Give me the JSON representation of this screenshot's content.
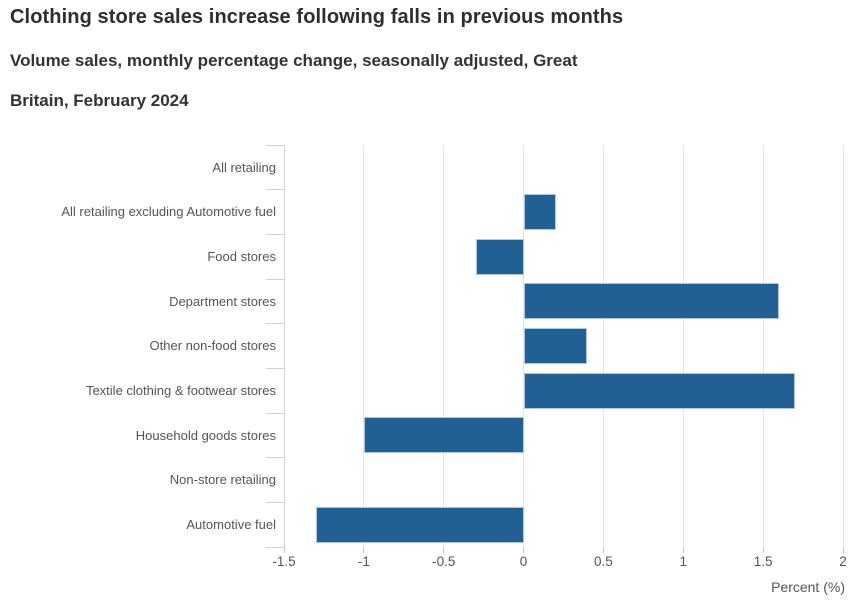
{
  "header": {
    "title": "Clothing store sales increase following falls in previous months",
    "subtitle_line1": "Volume sales, monthly percentage change, seasonally adjusted, Great",
    "subtitle_line2": "Britain, February 2024"
  },
  "chart_data": {
    "type": "bar",
    "orientation": "horizontal",
    "title": "Clothing store sales increase following falls in previous months",
    "subtitle": "Volume sales, monthly percentage change, seasonally adjusted, Great Britain, February 2024",
    "categories": [
      "All retailing",
      "All retailing excluding Automotive fuel",
      "Food stores",
      "Department stores",
      "Other non-food stores",
      "Textile clothing & footwear stores",
      "Household goods stores",
      "Non-store retailing",
      "Automotive fuel"
    ],
    "values": [
      0,
      0.2,
      -0.3,
      1.6,
      0.4,
      1.7,
      -1.0,
      0,
      -1.3
    ],
    "xlabel": "Percent (%)",
    "xlim": [
      -1.5,
      2
    ],
    "xticks": [
      -1.5,
      -1,
      -0.5,
      0,
      0.5,
      1,
      1.5,
      2
    ],
    "xtick_labels": [
      "-1.5",
      "-1",
      "-0.5",
      "0",
      "0.5",
      "1",
      "1.5",
      "2"
    ],
    "grid": true,
    "legend": false,
    "colors": {
      "bar": "#206095",
      "bar_border": "#aec8de",
      "gridline": "#e4e4e4",
      "axis": "#c9d3dd",
      "tick_stub": "#c4c4c4",
      "title_text": "#2e2e2e",
      "label_text": "#555555"
    }
  }
}
